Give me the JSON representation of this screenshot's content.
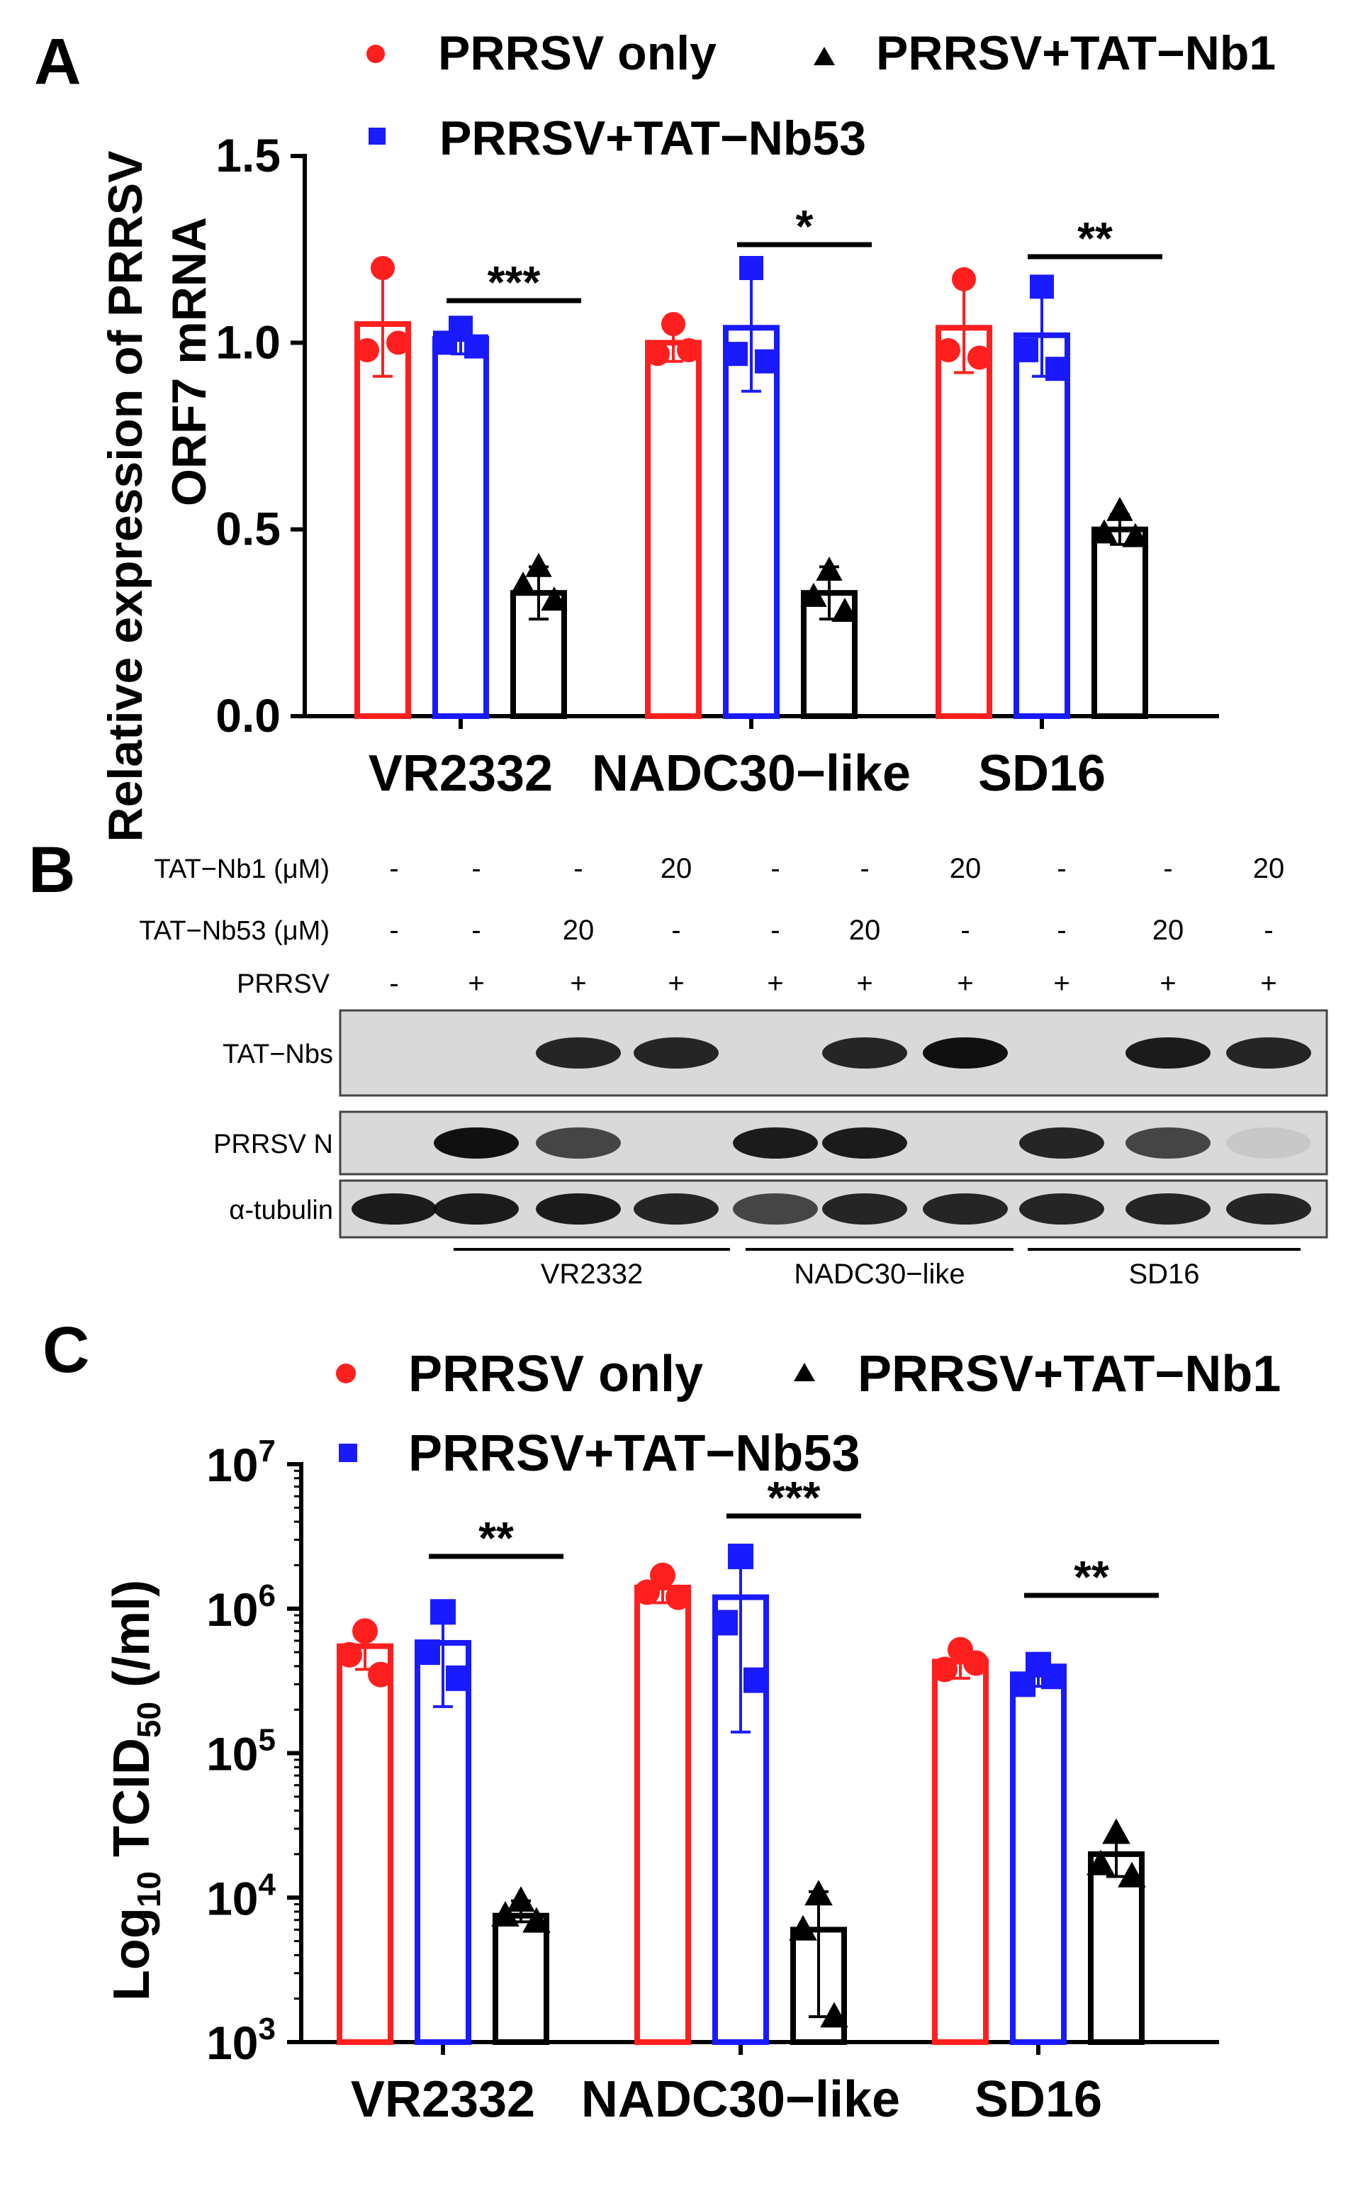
{
  "panels": {
    "a": {
      "letter": "A"
    },
    "b": {
      "letter": "B"
    },
    "c": {
      "letter": "C"
    }
  },
  "legend": {
    "items": [
      {
        "key": "only",
        "label": "PRRSV only",
        "color": "#ff1f1f",
        "marker": "circle"
      },
      {
        "key": "nb1",
        "label": "PRRSV+TAT−Nb1",
        "color": "#000000",
        "marker": "triangle"
      },
      {
        "key": "nb53",
        "label": "PRRSV+TAT−Nb53",
        "color": "#1a1aff",
        "marker": "square"
      }
    ]
  },
  "chart_data": [
    {
      "panel": "A",
      "type": "bar",
      "ylabel_line1": "Relative expression of PRRSV",
      "ylabel_line2": "ORF7 mRNA",
      "ylim": [
        0,
        1.5
      ],
      "yticks": [
        "0.0",
        "0.5",
        "1.0",
        "1.5"
      ],
      "ytick_values": [
        0,
        0.5,
        1.0,
        1.5
      ],
      "categories": [
        "VR2332",
        "NADC30−like",
        "SD16"
      ],
      "series": [
        {
          "name": "PRRSV only",
          "key": "only",
          "values": [
            1.05,
            1.0,
            1.04
          ],
          "err": [
            0.14,
            0.05,
            0.12
          ],
          "points": [
            [
              1.2,
              0.98,
              1.0
            ],
            [
              1.05,
              0.97,
              0.98
            ],
            [
              1.17,
              0.98,
              0.96
            ]
          ]
        },
        {
          "name": "PRRSV+TAT−Nb53",
          "key": "nb53",
          "values": [
            1.01,
            1.04,
            1.02
          ],
          "err": [
            0.04,
            0.17,
            0.11
          ],
          "points": [
            [
              1.04,
              1.0,
              0.99
            ],
            [
              1.2,
              0.97,
              0.95
            ],
            [
              1.15,
              0.98,
              0.93
            ]
          ]
        },
        {
          "name": "PRRSV+TAT−Nb1",
          "key": "nb1",
          "values": [
            0.33,
            0.33,
            0.5
          ],
          "err": [
            0.07,
            0.07,
            0.04
          ],
          "points": [
            [
              0.4,
              0.35,
              0.31
            ],
            [
              0.39,
              0.32,
              0.28
            ],
            [
              0.55,
              0.49,
              0.48
            ]
          ]
        }
      ],
      "significance": [
        "***",
        "*",
        "**"
      ]
    },
    {
      "panel": "C",
      "type": "bar",
      "ylabel_prefix": "Log",
      "ylabel_sub1": "10",
      "ylabel_mid": " TCID",
      "ylabel_sub2": "50",
      "ylabel_suffix": " (/ml)",
      "yscale": "log",
      "ylim": [
        1000,
        10000000
      ],
      "ytick_base": "10",
      "ytick_exponents": [
        "3",
        "4",
        "5",
        "6",
        "7"
      ],
      "categories": [
        "VR2332",
        "NADC30−like",
        "SD16"
      ],
      "series": [
        {
          "name": "PRRSV only",
          "key": "only",
          "values": [
            550000,
            1400000,
            430000
          ],
          "err_low": [
            380000,
            1100000,
            330000
          ],
          "err_high": [
            780000,
            1750000,
            560000
          ],
          "points": [
            [
              700000,
              480000,
              350000
            ],
            [
              1700000,
              1300000,
              1200000
            ],
            [
              520000,
              380000,
              420000
            ]
          ]
        },
        {
          "name": "PRRSV+TAT−Nb53",
          "key": "nb53",
          "values": [
            580000,
            1200000,
            350000
          ],
          "err_low": [
            210000,
            140000,
            290000
          ],
          "err_high": [
            900000,
            2100000,
            420000
          ],
          "points": [
            [
              950000,
              500000,
              330000
            ],
            [
              2300000,
              800000,
              320000
            ],
            [
              410000,
              300000,
              340000
            ]
          ]
        },
        {
          "name": "PRRSV+TAT−Nb1",
          "key": "nb1",
          "values": [
            7500,
            6000,
            20000
          ],
          "err_low": [
            6800,
            1500,
            14000
          ],
          "err_high": [
            9500,
            11000,
            26000
          ],
          "points": [
            [
              9500,
              7500,
              6800
            ],
            [
              10500,
              6000,
              1500
            ],
            [
              28000,
              17000,
              14000
            ]
          ]
        }
      ],
      "significance": [
        "**",
        "***",
        "**"
      ]
    }
  ],
  "blot": {
    "rows": [
      {
        "label": "TAT−Nb1 (μM)",
        "values": [
          "-",
          "-",
          "-",
          "20",
          "-",
          "-",
          "20",
          "-",
          "-",
          "20"
        ]
      },
      {
        "label": "TAT−Nb53 (μM)",
        "values": [
          "-",
          "-",
          "20",
          "-",
          "-",
          "20",
          "-",
          "-",
          "20",
          "-"
        ]
      },
      {
        "label": "PRRSV",
        "values": [
          "-",
          "+",
          "+",
          "+",
          "+",
          "+",
          "+",
          "+",
          "+",
          "+"
        ]
      }
    ],
    "bands": [
      {
        "label": "TAT−Nbs",
        "intensity": [
          0,
          0,
          0.85,
          0.85,
          0,
          0.85,
          0.95,
          0,
          0.9,
          0.85
        ]
      },
      {
        "label": "PRRSV N",
        "intensity": [
          0,
          0.95,
          0.7,
          0,
          0.9,
          0.9,
          0,
          0.85,
          0.7,
          0.08
        ]
      },
      {
        "label": "α-tubulin",
        "intensity": [
          0.9,
          0.9,
          0.9,
          0.85,
          0.7,
          0.85,
          0.85,
          0.85,
          0.85,
          0.85
        ]
      }
    ],
    "groups": [
      "VR2332",
      "NADC30−like",
      "SD16"
    ]
  }
}
